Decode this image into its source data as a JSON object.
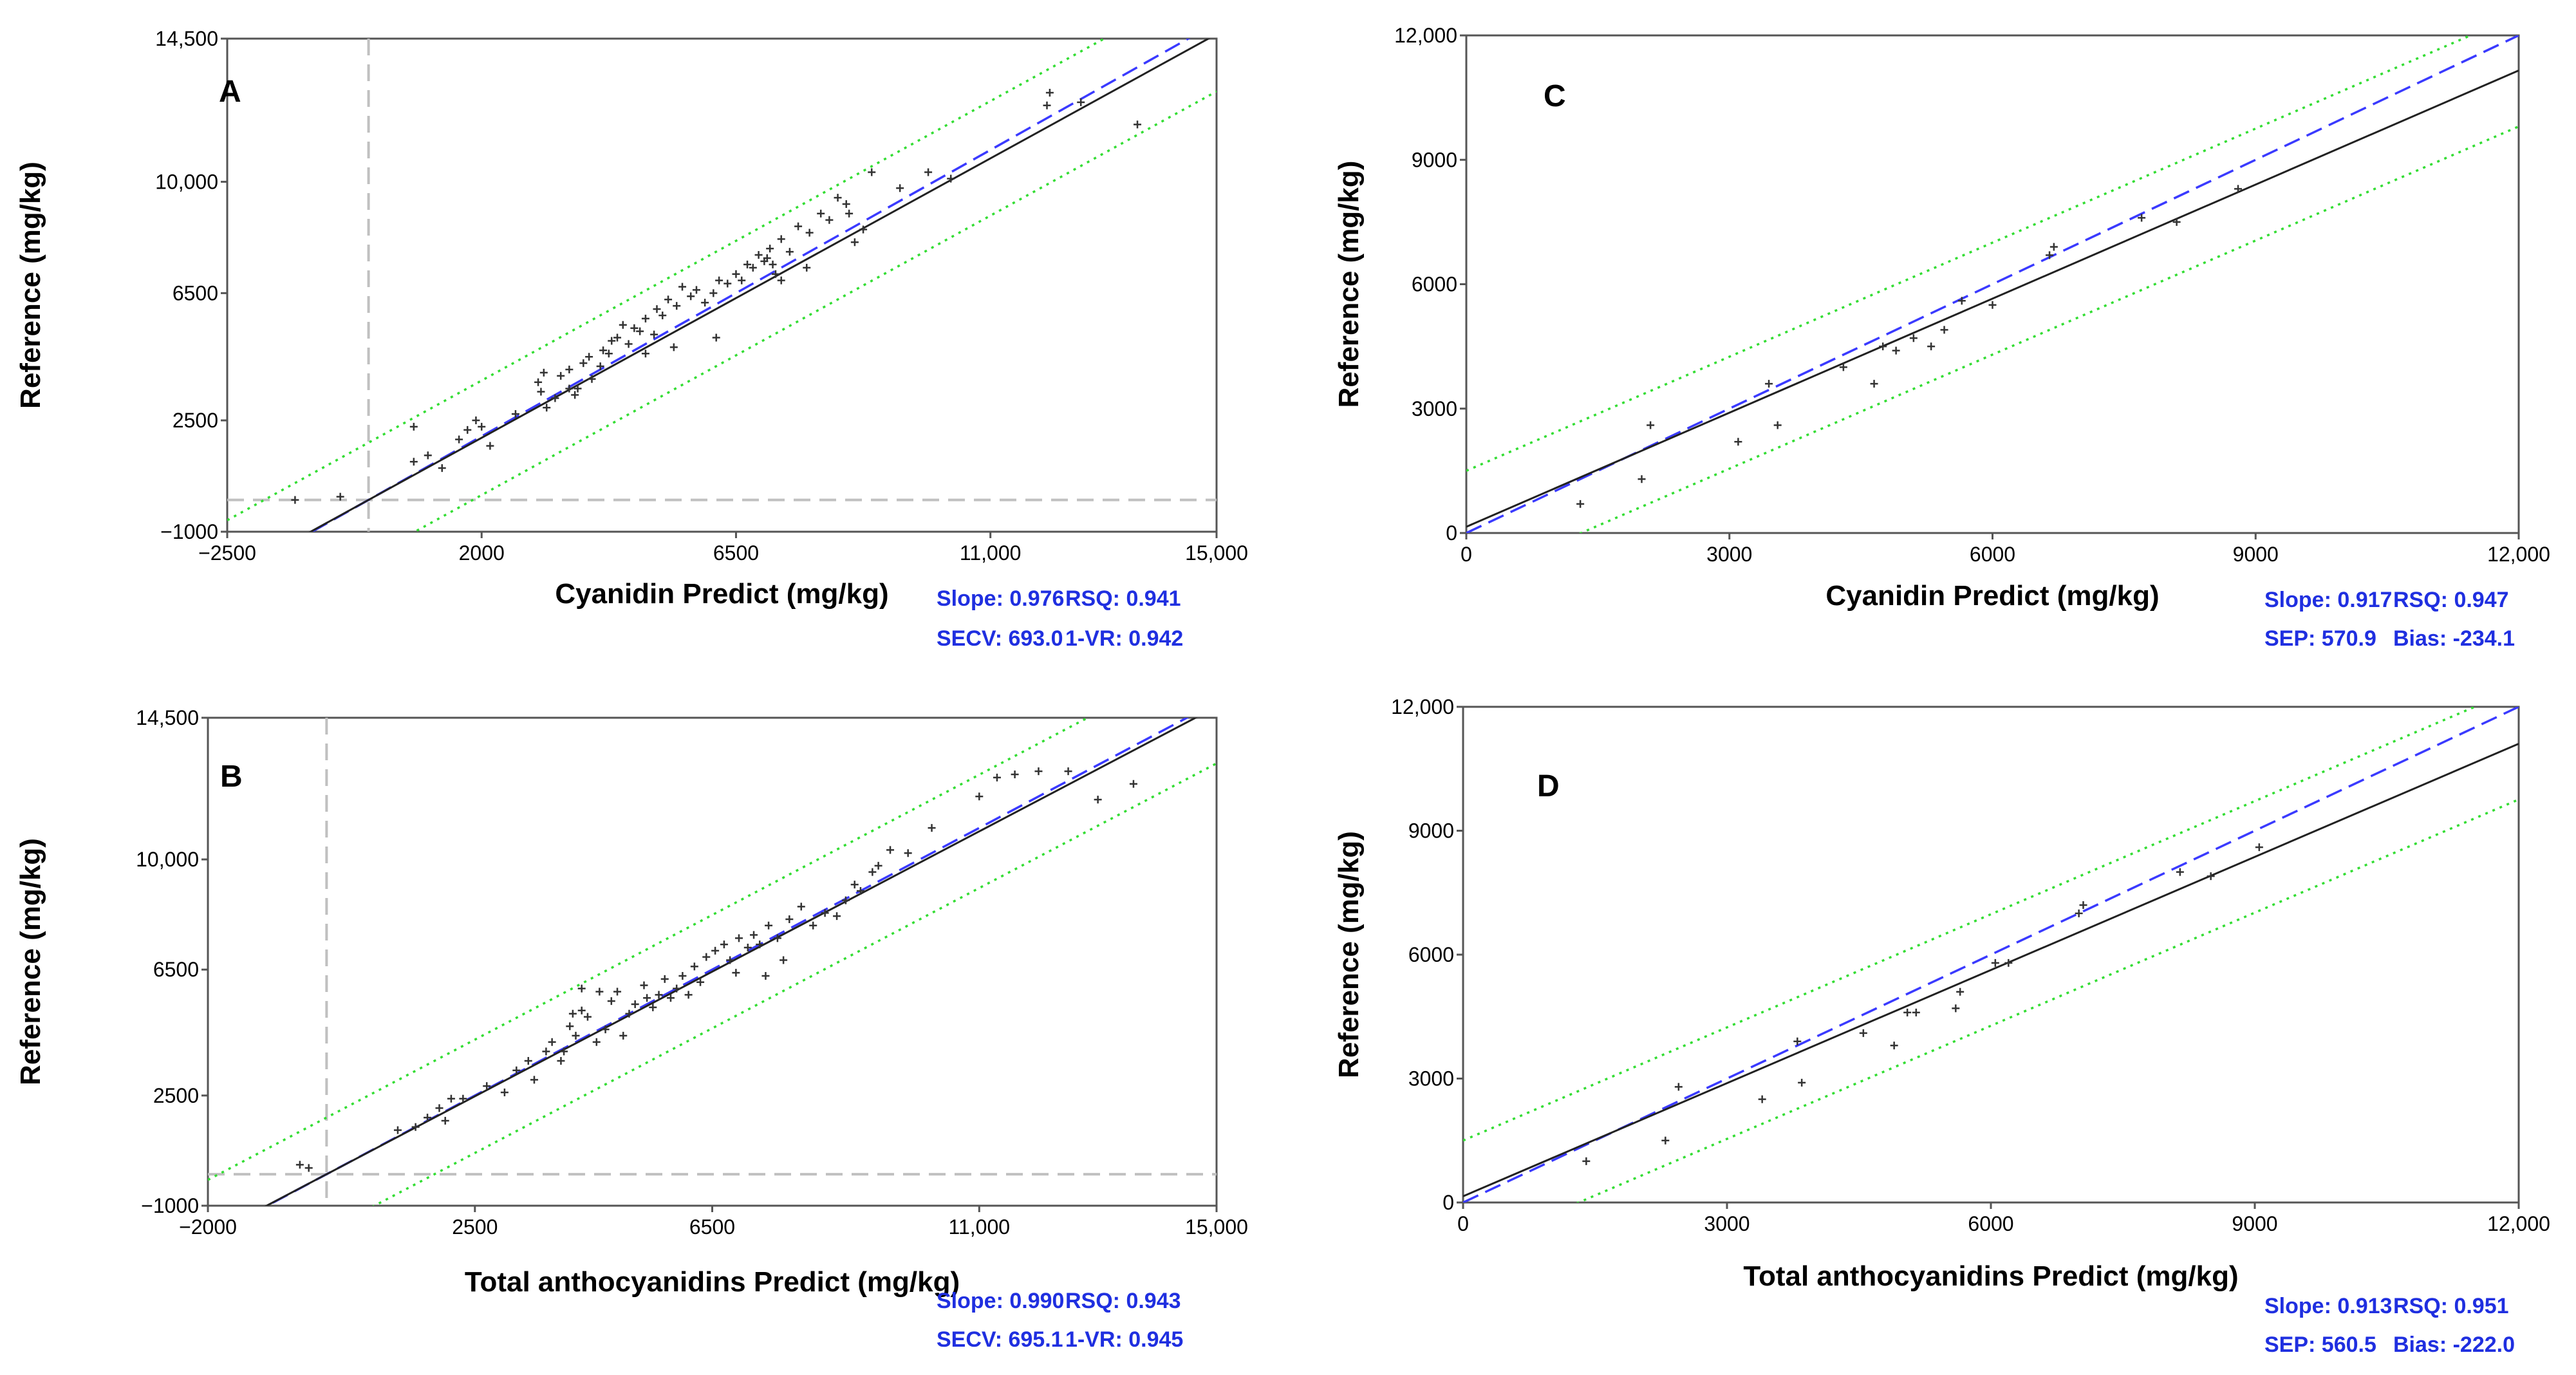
{
  "chart_data": [
    {
      "type": "scatter",
      "panel": "A",
      "xlabel": "Cyanidin Predict (mg/kg)",
      "ylabel": "Reference  (mg/kg)",
      "xlim": [
        -2500,
        15000
      ],
      "ylim": [
        -1000,
        14500
      ],
      "xticks": [
        -2500,
        2000,
        6500,
        11000,
        15000
      ],
      "xtick_labels": [
        "−2500",
        "2000",
        "6500",
        "11,000",
        "15,000"
      ],
      "yticks": [
        -1000,
        2500,
        6500,
        10000,
        14500
      ],
      "ytick_labels": [
        "−1000",
        "2500",
        "6500",
        "10,000",
        "14,500"
      ],
      "cutoff_x": 0,
      "cutoff_y": 0,
      "fit": {
        "slope": 0.976,
        "intercept": 0
      },
      "band": 1800,
      "stats": [
        [
          "Slope: 0.976",
          "RSQ: 0.941"
        ],
        [
          "SECV: 693.0",
          "1-VR: 0.942"
        ]
      ],
      "x": [
        -1300,
        -500,
        800,
        1050,
        1300,
        800,
        1600,
        1750,
        1900,
        2000,
        2150,
        2600,
        3000,
        3050,
        3100,
        3300,
        3400,
        3550,
        3700,
        3800,
        3900,
        3950,
        4100,
        4150,
        4250,
        4300,
        4400,
        4500,
        4600,
        4700,
        4800,
        4900,
        5050,
        5100,
        5200,
        5300,
        5450,
        5550,
        5700,
        5800,
        5950,
        6100,
        6200,
        6350,
        6500,
        6600,
        6700,
        6800,
        6900,
        7000,
        7100,
        7200,
        7300,
        7450,
        7600,
        7800,
        8000,
        8150,
        8300,
        8450,
        8500,
        8600,
        8750,
        8900,
        9400,
        9900,
        10300,
        12000,
        12050,
        12600,
        13600,
        3550,
        3650,
        3150,
        4900,
        5400,
        6150,
        7300,
        7750,
        7050,
        7150
      ],
      "y": [
        0,
        100,
        2300,
        1400,
        1000,
        1200,
        1900,
        2200,
        2500,
        2300,
        1700,
        2700,
        3700,
        3400,
        4000,
        3200,
        3900,
        4100,
        3500,
        4300,
        4500,
        3800,
        4200,
        4700,
        4600,
        5000,
        5100,
        5500,
        4900,
        5400,
        5300,
        5700,
        5200,
        6000,
        5800,
        6300,
        6100,
        6700,
        6400,
        6600,
        6200,
        6500,
        6900,
        6800,
        7100,
        6900,
        7400,
        7300,
        7700,
        7500,
        7900,
        7100,
        8200,
        7800,
        8600,
        8400,
        9000,
        8800,
        9500,
        9300,
        9000,
        8100,
        8500,
        10300,
        9800,
        10300,
        10100,
        12400,
        12800,
        12500,
        11800,
        3500,
        3300,
        2900,
        4600,
        4800,
        5100,
        6900,
        7300,
        7600,
        7400
      ]
    },
    {
      "type": "scatter",
      "panel": "B",
      "xlabel": "Total anthocyanidins Predict (mg/kg)",
      "ylabel": "Reference  (mg/kg)",
      "xlim": [
        -2000,
        15000
      ],
      "ylim": [
        -1000,
        14500
      ],
      "xticks": [
        -2000,
        2500,
        6500,
        11000,
        15000
      ],
      "xtick_labels": [
        "−2000",
        "2500",
        "6500",
        "11,000",
        "15,000"
      ],
      "yticks": [
        -1000,
        2500,
        6500,
        10000,
        14500
      ],
      "ytick_labels": [
        "−1000",
        "2500",
        "6500",
        "10,000",
        "14,500"
      ],
      "cutoff_x": 0,
      "cutoff_y": 0,
      "fit": {
        "slope": 0.99,
        "intercept": 0
      },
      "band": 1800,
      "stats": [
        [
          "Slope: 0.990",
          "RSQ: 0.943"
        ],
        [
          "SECV: 695.1",
          "1-VR: 0.945"
        ]
      ],
      "x": [
        -450,
        -300,
        1200,
        1500,
        1700,
        1900,
        2000,
        2100,
        2300,
        2700,
        3000,
        3200,
        3400,
        3500,
        3700,
        3800,
        3950,
        4100,
        4200,
        4300,
        4400,
        4550,
        4700,
        4800,
        4900,
        5000,
        5100,
        5200,
        5350,
        5500,
        5600,
        5700,
        5800,
        5900,
        6000,
        6200,
        6300,
        6400,
        6550,
        6700,
        6800,
        6950,
        7100,
        7200,
        7300,
        7450,
        7600,
        7800,
        8000,
        8200,
        8400,
        8600,
        8750,
        8900,
        9000,
        9200,
        9300,
        9500,
        9800,
        10200,
        11000,
        11300,
        11600,
        12000,
        12500,
        13000,
        13600,
        4000,
        4150,
        4300,
        4600,
        5400,
        6100,
        6900,
        7400,
        7700
      ],
      "y": [
        300,
        200,
        1400,
        1500,
        1800,
        2100,
        1700,
        2400,
        2400,
        2800,
        2600,
        3300,
        3600,
        3000,
        3900,
        4200,
        3600,
        4700,
        4400,
        5200,
        5000,
        4200,
        4600,
        5500,
        5800,
        4400,
        5100,
        5400,
        6000,
        5300,
        5700,
        6200,
        5600,
        5900,
        6300,
        6600,
        6100,
        6900,
        7100,
        7300,
        6800,
        7500,
        7200,
        7600,
        7300,
        7900,
        7500,
        8100,
        8500,
        7900,
        8300,
        8200,
        8700,
        9200,
        9000,
        9600,
        9800,
        10300,
        10200,
        11000,
        12000,
        12600,
        12700,
        12800,
        12800,
        11900,
        12400,
        3900,
        5100,
        5900,
        5800,
        5600,
        5700,
        6400,
        6300,
        6800
      ]
    },
    {
      "type": "scatter",
      "panel": "C",
      "xlabel": "Cyanidin Predict (mg/kg)",
      "ylabel": "Reference  (mg/kg)",
      "xlim": [
        0,
        12000
      ],
      "ylim": [
        0,
        12000
      ],
      "xticks": [
        0,
        3000,
        6000,
        9000,
        12000
      ],
      "xtick_labels": [
        "0",
        "3000",
        "6000",
        "9000",
        "12,000"
      ],
      "yticks": [
        0,
        3000,
        6000,
        9000,
        12000
      ],
      "ytick_labels": [
        "0",
        "3000",
        "6000",
        "9000",
        "12,000"
      ],
      "fit": {
        "slope": 0.917,
        "intercept": 150
      },
      "band": 1350,
      "stats": [
        [
          "Slope: 0.917",
          "RSQ: 0.947"
        ],
        [
          "SEP: 570.9",
          "Bias: -234.1"
        ]
      ],
      "x": [
        1300,
        2000,
        2100,
        3100,
        3450,
        3550,
        4300,
        4650,
        4750,
        4900,
        5100,
        5300,
        5450,
        5650,
        6000,
        6650,
        6700,
        7700,
        8100,
        8800
      ],
      "y": [
        700,
        1300,
        2600,
        2200,
        3600,
        2600,
        4000,
        3600,
        4500,
        4400,
        4700,
        4500,
        4900,
        5600,
        5500,
        6700,
        6900,
        7600,
        7500,
        8300
      ]
    },
    {
      "type": "scatter",
      "panel": "D",
      "xlabel": "Total anthocyanidins Predict (mg/kg)",
      "ylabel": "Reference  (mg/kg)",
      "xlim": [
        0,
        12000
      ],
      "ylim": [
        0,
        12000
      ],
      "xticks": [
        0,
        3000,
        6000,
        9000,
        12000
      ],
      "xtick_labels": [
        "0",
        "3000",
        "6000",
        "9000",
        "12,000"
      ],
      "yticks": [
        0,
        3000,
        6000,
        9000,
        12000
      ],
      "ytick_labels": [
        "0",
        "3000",
        "6000",
        "9000",
        "12,000"
      ],
      "fit": {
        "slope": 0.913,
        "intercept": 150
      },
      "band": 1350,
      "stats": [
        [
          "Slope: 0.913",
          "RSQ: 0.951"
        ],
        [
          "SEP: 560.5",
          "Bias: -222.0"
        ]
      ],
      "x": [
        1400,
        2300,
        2450,
        3400,
        3800,
        3850,
        4550,
        4900,
        5050,
        5150,
        5600,
        5650,
        6050,
        6200,
        7000,
        7050,
        8150,
        8500,
        9050
      ],
      "y": [
        1000,
        1500,
        2800,
        2500,
        3900,
        2900,
        4100,
        3800,
        4600,
        4600,
        4700,
        5100,
        5800,
        5800,
        7000,
        7200,
        8000,
        7900,
        8600
      ]
    }
  ]
}
